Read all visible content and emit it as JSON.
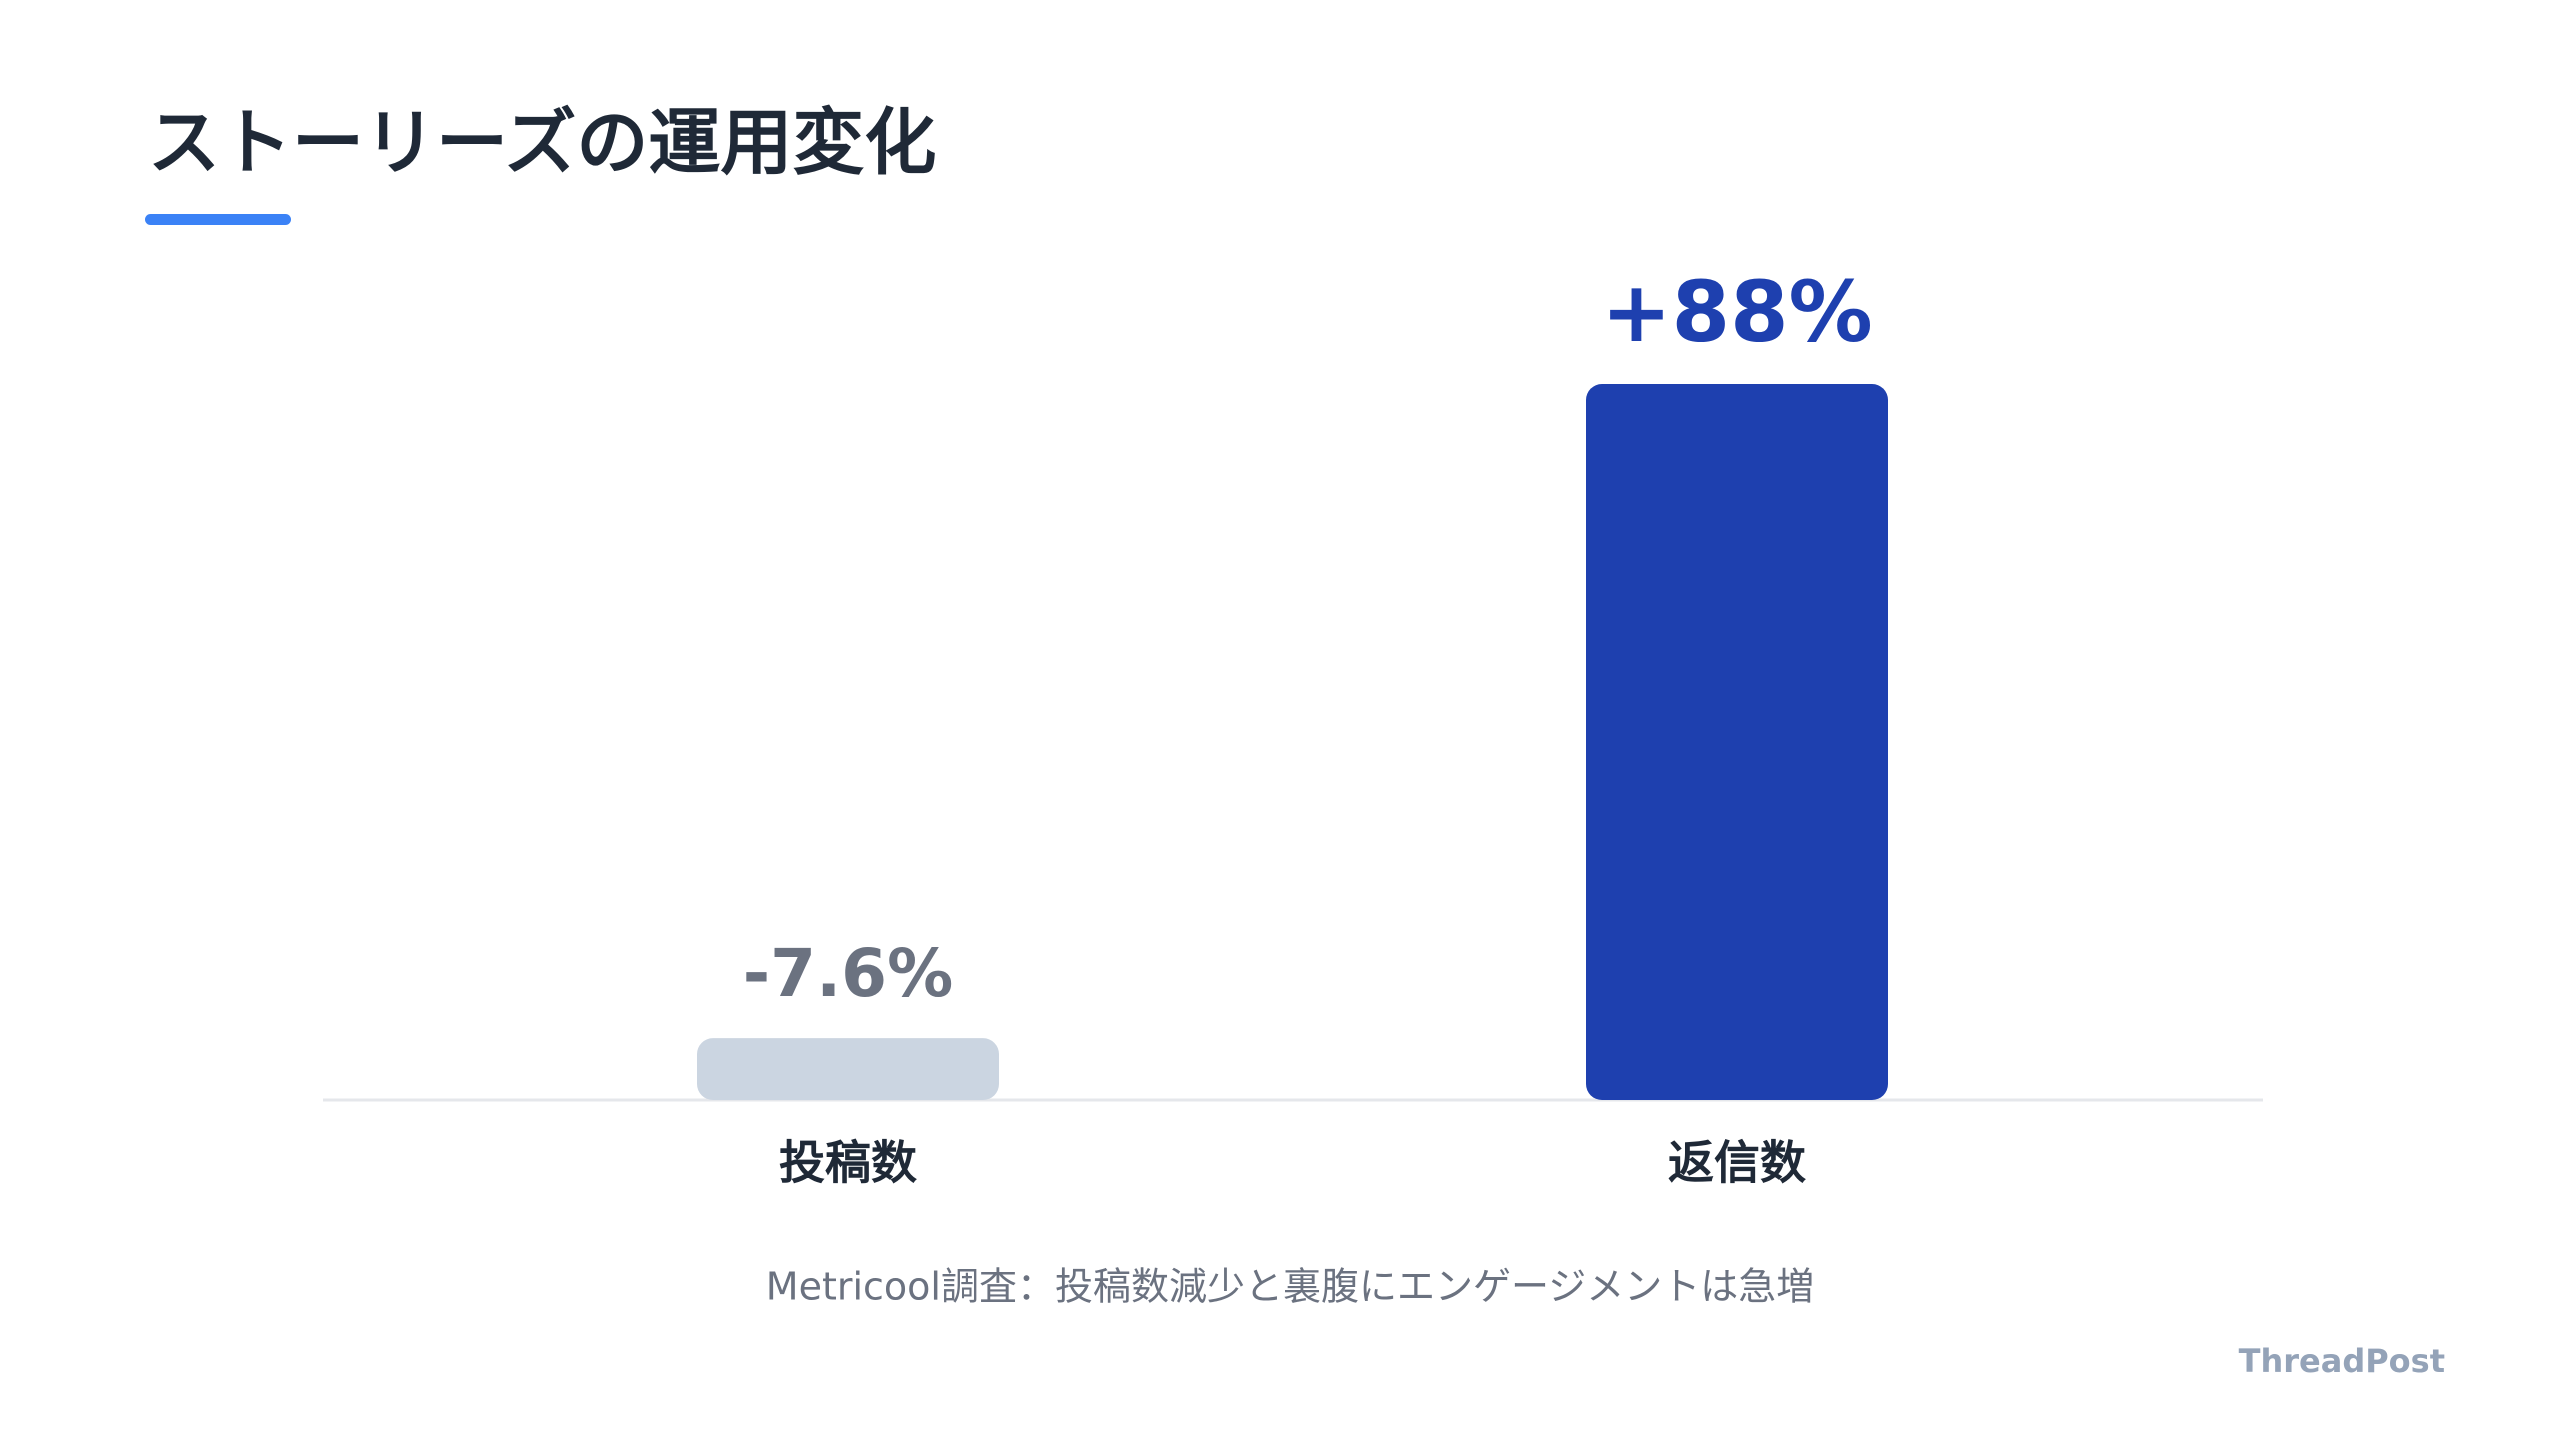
{
  "chart_data": {
    "type": "bar",
    "title": "ストーリーズの運用変化",
    "categories": [
      "投稿数",
      "返信数"
    ],
    "values": [
      -7.6,
      88
    ],
    "value_labels": [
      "-7.6%",
      "+88%"
    ],
    "colors": [
      "#cbd5e1",
      "#1e40af"
    ],
    "label_colors": [
      "#6b7280",
      "#1e40af"
    ],
    "caption": "Metricool調査：投稿数減少と裏腹にエンゲージメントは急増",
    "brand": "ThreadPost"
  }
}
